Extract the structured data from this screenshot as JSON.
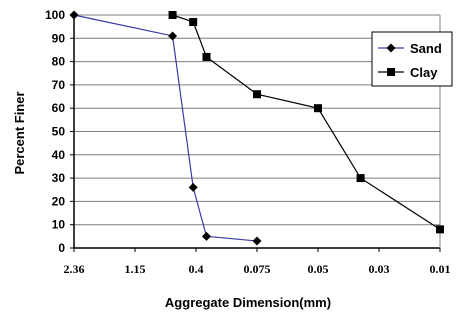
{
  "chart_data": {
    "type": "line",
    "title": "",
    "xlabel": "Aggregate Dimension(mm)",
    "ylabel": "Percent Finer",
    "x_tick_labels": [
      "2.36",
      "1.15",
      "0.4",
      "0.075",
      "0.05",
      "0.03",
      "0.01"
    ],
    "y_ticks": [
      0,
      10,
      20,
      30,
      40,
      50,
      60,
      70,
      80,
      90,
      100
    ],
    "ylim": [
      0,
      100
    ],
    "grid": "horizontal",
    "legend_position": "top-right",
    "series": [
      {
        "name": "Sand",
        "color": "#3a3aa8",
        "marker": "diamond",
        "points": [
          {
            "x": 2.36,
            "y": 100
          },
          {
            "x": 0.6,
            "y": 91
          },
          {
            "x": 0.42,
            "y": 26
          },
          {
            "x": 0.3,
            "y": 5
          },
          {
            "x": 0.075,
            "y": 3
          }
        ]
      },
      {
        "name": "Clay",
        "color": "#000000",
        "marker": "square",
        "points": [
          {
            "x": 0.6,
            "y": 100
          },
          {
            "x": 0.42,
            "y": 97
          },
          {
            "x": 0.3,
            "y": 82
          },
          {
            "x": 0.075,
            "y": 66
          },
          {
            "x": 0.05,
            "y": 60
          },
          {
            "x": 0.035,
            "y": 30
          },
          {
            "x": 0.01,
            "y": 8
          }
        ]
      }
    ]
  }
}
